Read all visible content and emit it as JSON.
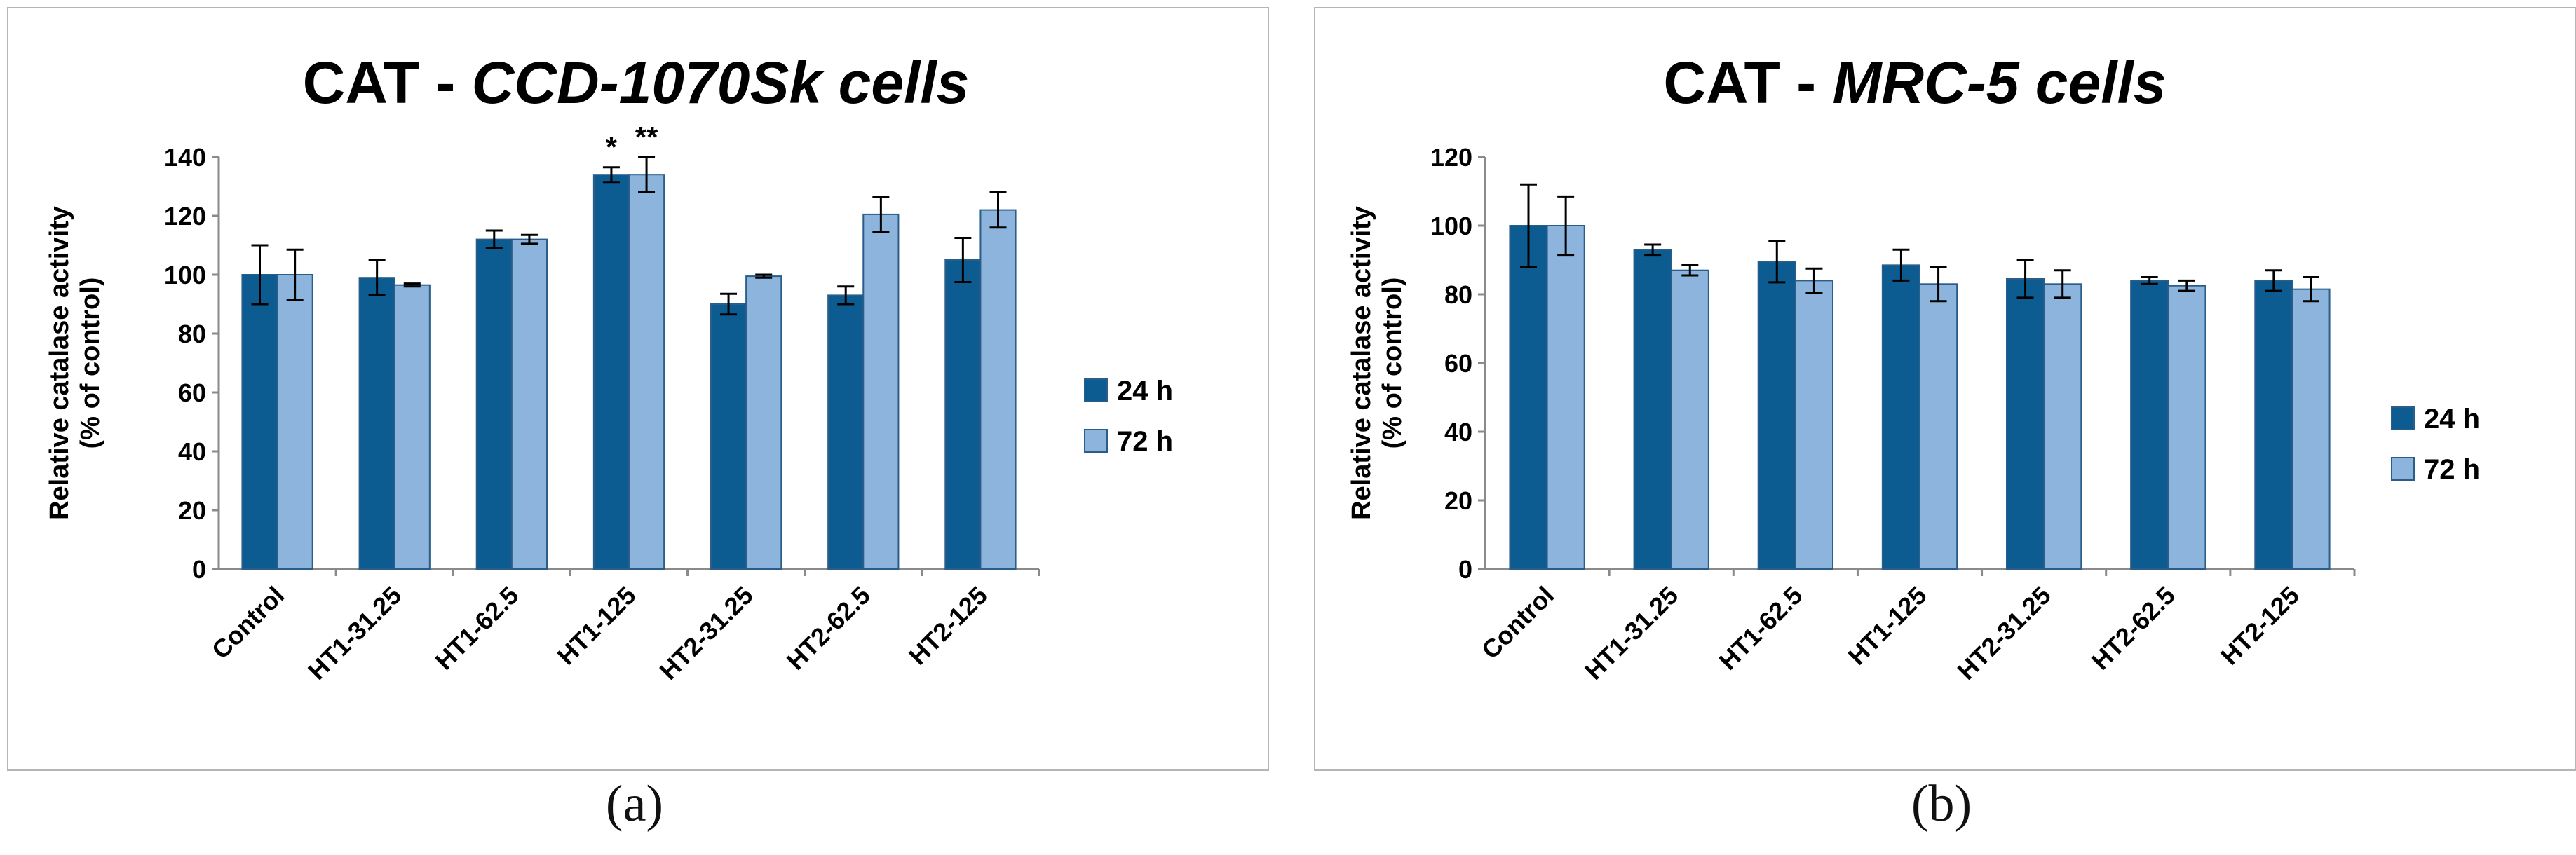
{
  "chart_data": [
    {
      "type": "bar",
      "panel_label": "(a)",
      "title_prefix": "CAT - ",
      "title_italic": "CCD-1070Sk cells",
      "ylabel_line1": "Relative catalase activity",
      "ylabel_line2": "(% of control)",
      "ylim": [
        0,
        140
      ],
      "yticks": [
        0,
        20,
        40,
        60,
        80,
        100,
        120,
        140
      ],
      "categories": [
        "Control",
        "HT1-31.25",
        "HT1-62.5",
        "HT1-125",
        "HT2-31.25",
        "HT2-62.5",
        "HT2-125"
      ],
      "series": [
        {
          "name": "24 h",
          "color": "#0d5c91",
          "values": [
            100,
            99,
            112,
            134,
            90,
            93,
            105
          ],
          "errors": [
            10,
            6,
            3,
            2.5,
            3.5,
            3,
            7.5
          ]
        },
        {
          "name": "72 h",
          "color": "#8db4dc",
          "values": [
            100,
            96.5,
            112,
            134,
            99.5,
            120.5,
            122
          ],
          "errors": [
            8.5,
            0.5,
            1.5,
            6,
            0.5,
            6,
            6
          ]
        }
      ],
      "annotations": [
        {
          "category": "HT1-125",
          "series": "24 h",
          "text": "*"
        },
        {
          "category": "HT1-125",
          "series": "72 h",
          "text": "**"
        }
      ],
      "legend_position": "right"
    },
    {
      "type": "bar",
      "panel_label": "(b)",
      "title_prefix": "CAT - ",
      "title_italic": "MRC-5 cells",
      "ylabel_line1": "Relative catalase activity",
      "ylabel_line2": "(% of control)",
      "ylim": [
        0,
        120
      ],
      "yticks": [
        0,
        20,
        40,
        60,
        80,
        100,
        120
      ],
      "categories": [
        "Control",
        "HT1-31.25",
        "HT1-62.5",
        "HT1-125",
        "HT2-31.25",
        "HT2-62.5",
        "HT2-125"
      ],
      "series": [
        {
          "name": "24 h",
          "color": "#0d5c91",
          "values": [
            100,
            93,
            89.5,
            88.5,
            84.5,
            84,
            84
          ],
          "errors": [
            12,
            1.5,
            6,
            4.5,
            5.5,
            1,
            3
          ]
        },
        {
          "name": "72 h",
          "color": "#8db4dc",
          "values": [
            100,
            87,
            84,
            83,
            83,
            82.5,
            81.5
          ],
          "errors": [
            8.5,
            1.5,
            3.5,
            5,
            4,
            1.5,
            3.5
          ]
        }
      ],
      "annotations": [],
      "legend_position": "right"
    }
  ]
}
